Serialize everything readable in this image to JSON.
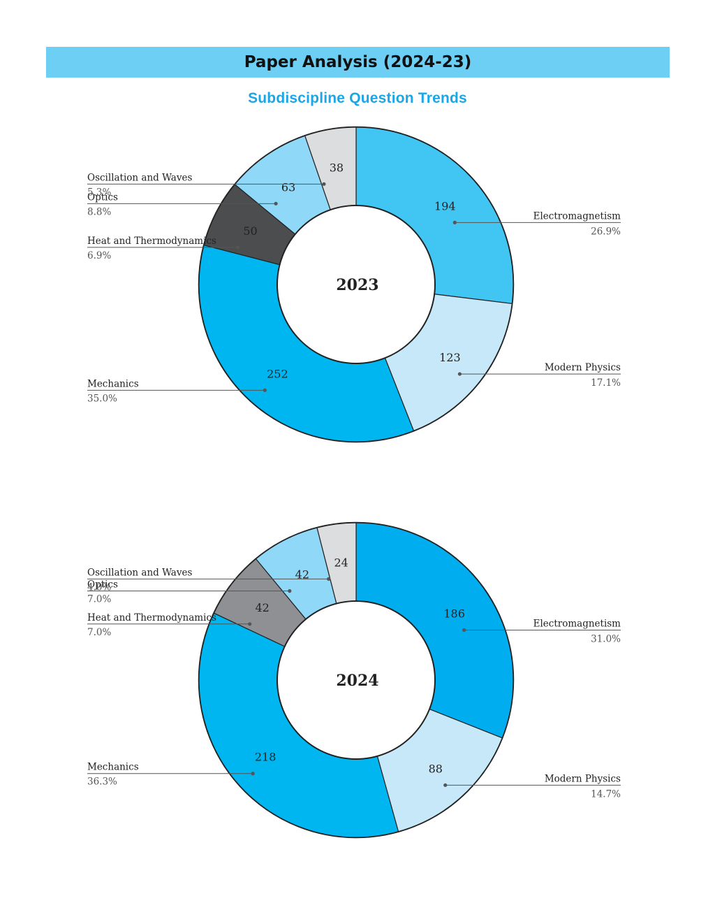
{
  "header": {
    "title": "Paper Analysis (2024-23)"
  },
  "subtitle": "Subdiscipline Question Trends",
  "colors": {
    "header_bg": "#6dcff3",
    "subtitle": "#1ba6e6",
    "outline": "#222222",
    "leader": "#555555"
  },
  "chart_data": [
    {
      "type": "pie",
      "style": "donut",
      "center_label": "2023",
      "slices": [
        {
          "name": "Electromagnetism",
          "value": 194,
          "percent": "26.9%",
          "color": "#41c6f4",
          "label_side": "right"
        },
        {
          "name": "Modern Physics",
          "value": 123,
          "percent": "17.1%",
          "color": "#c6e8f9",
          "label_side": "right"
        },
        {
          "name": "Mechanics",
          "value": 252,
          "percent": "35.0%",
          "color": "#00b6f0",
          "label_side": "left"
        },
        {
          "name": "Heat and Thermodynamics",
          "value": 50,
          "percent": "6.9%",
          "color": "#4b4d4f",
          "label_side": "left"
        },
        {
          "name": "Optics",
          "value": 63,
          "percent": "8.8%",
          "color": "#8fd8f7",
          "label_side": "left"
        },
        {
          "name": "Oscillation and Waves",
          "value": 38,
          "percent": "5.3%",
          "color": "#dcdddf",
          "label_side": "left"
        }
      ]
    },
    {
      "type": "pie",
      "style": "donut",
      "center_label": "2024",
      "slices": [
        {
          "name": "Electromagnetism",
          "value": 186,
          "percent": "31.0%",
          "color": "#00adef",
          "label_side": "right"
        },
        {
          "name": "Modern Physics",
          "value": 88,
          "percent": "14.7%",
          "color": "#c6e8f9",
          "label_side": "right"
        },
        {
          "name": "Mechanics",
          "value": 218,
          "percent": "36.3%",
          "color": "#00b6f0",
          "label_side": "left"
        },
        {
          "name": "Heat and Thermodynamics",
          "value": 42,
          "percent": "7.0%",
          "color": "#8e9093",
          "label_side": "left"
        },
        {
          "name": "Optics",
          "value": 42,
          "percent": "7.0%",
          "color": "#8fd8f7",
          "label_side": "left"
        },
        {
          "name": "Oscillation and Waves",
          "value": 24,
          "percent": "4.0%",
          "color": "#dcdddf",
          "label_side": "left"
        }
      ]
    }
  ]
}
